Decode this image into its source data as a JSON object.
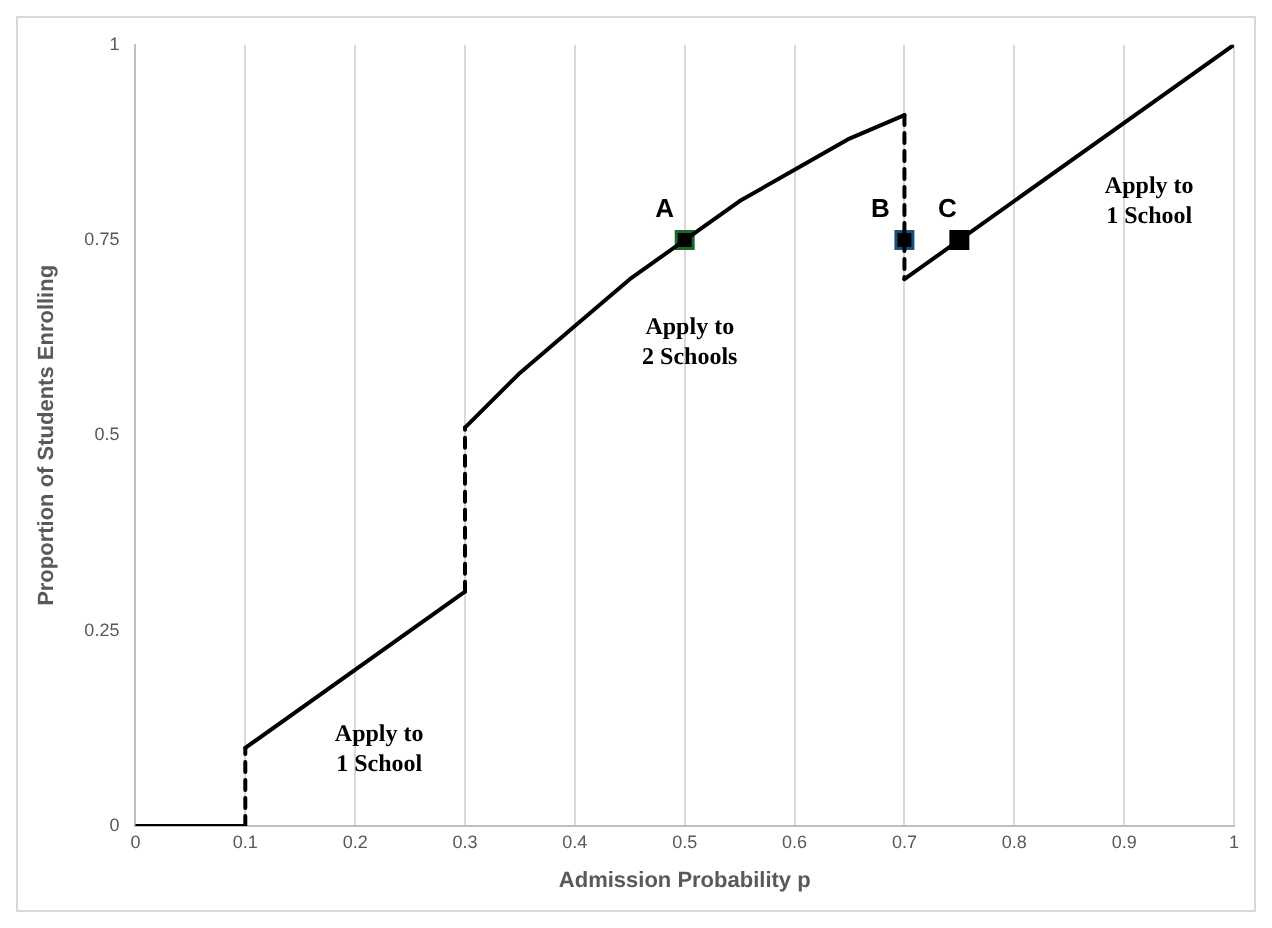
{
  "chart_data": {
    "type": "line",
    "xlabel": "Admission Probability p",
    "ylabel": "Proportion of Students Enrolling",
    "xlim": [
      0,
      1
    ],
    "xticks": [
      0,
      0.1,
      0.2,
      0.3,
      0.4,
      0.5,
      0.6,
      0.7,
      0.8,
      0.9,
      1
    ],
    "ylim": [
      0,
      1
    ],
    "yticks": [
      0,
      0.25,
      0.5,
      0.75,
      1
    ],
    "grid": "x",
    "legend": false,
    "series": [
      {
        "type": "line",
        "color": "#000000",
        "line_style": "solid",
        "x": [
          0,
          0.1
        ],
        "values": [
          0,
          0
        ]
      },
      {
        "type": "line",
        "color": "#000000",
        "line_style": "dashed",
        "x": [
          0.1,
          0.1
        ],
        "values": [
          0,
          0.1
        ]
      },
      {
        "type": "line",
        "color": "#000000",
        "line_style": "solid",
        "x": [
          0.1,
          0.3
        ],
        "values": [
          0.1,
          0.3
        ]
      },
      {
        "type": "line",
        "color": "#000000",
        "line_style": "dashed",
        "x": [
          0.3,
          0.3
        ],
        "values": [
          0.3,
          0.51
        ]
      },
      {
        "type": "line",
        "color": "#000000",
        "line_style": "solid",
        "x": [
          0.3,
          0.35,
          0.4,
          0.45,
          0.5,
          0.55,
          0.6,
          0.65,
          0.7
        ],
        "values": [
          0.51,
          0.58,
          0.64,
          0.7,
          0.75,
          0.8,
          0.84,
          0.88,
          0.91
        ]
      },
      {
        "type": "line",
        "color": "#000000",
        "line_style": "dashed",
        "x": [
          0.7,
          0.7
        ],
        "values": [
          0.91,
          0.7
        ]
      },
      {
        "type": "line",
        "color": "#000000",
        "line_style": "solid",
        "x": [
          0.7,
          1
        ],
        "values": [
          0.7,
          1
        ]
      },
      {
        "type": "scatter",
        "marker": "square",
        "colors": [
          "#1a6b2a",
          "#1f4e79",
          "#000000"
        ],
        "x": [
          0.5,
          0.7,
          0.75
        ],
        "values": [
          0.75,
          0.75,
          0.75
        ]
      }
    ],
    "annotations": [
      {
        "text": "A",
        "x": 0.5,
        "y": 0.75
      },
      {
        "text": "B",
        "x": 0.7,
        "y": 0.75
      },
      {
        "text": "C",
        "x": 0.75,
        "y": 0.75
      },
      {
        "text": "Apply to\n1 School",
        "x": 0.2,
        "y": 0.2
      },
      {
        "text": "Apply to\n2 Schools",
        "x": 0.45,
        "y": 0.7
      },
      {
        "text": "Apply to\n1 School",
        "x": 0.85,
        "y": 0.85
      }
    ]
  }
}
